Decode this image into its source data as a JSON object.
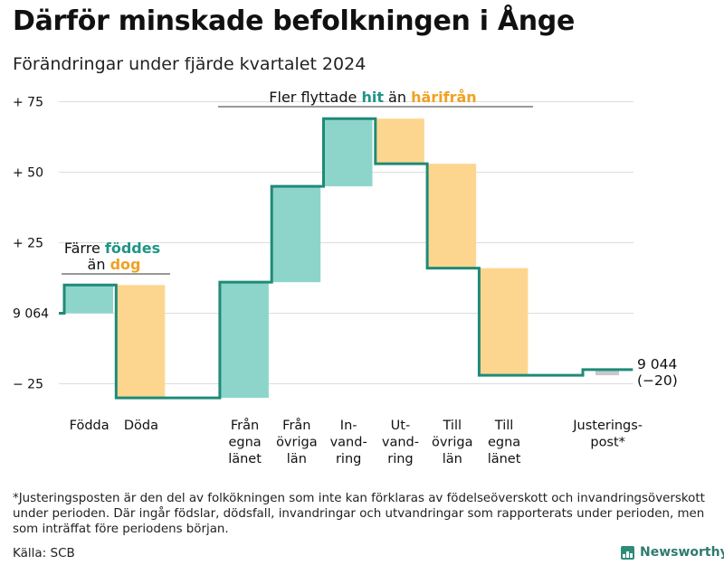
{
  "chart_data": {
    "type": "waterfall",
    "title": "Därför minskade befolkningen i Ånge",
    "subtitle": "Förändringar under fjärde kvartalet 2024",
    "start_label": "9 064",
    "start_value": 9064,
    "end_label": "9 044",
    "end_change_label": "(−20)",
    "ylim": [
      -32,
      82
    ],
    "yticks": [
      {
        "value": 75,
        "label": "+ 75"
      },
      {
        "value": 50,
        "label": "+ 50"
      },
      {
        "value": 25,
        "label": "+ 25"
      },
      {
        "value": 0,
        "label": "9 064"
      },
      {
        "value": -25,
        "label": "− 25"
      }
    ],
    "steps": [
      {
        "key": "fodda",
        "lines": [
          "Födda"
        ],
        "change": 10,
        "kind": "positive"
      },
      {
        "key": "doda",
        "lines": [
          "Döda"
        ],
        "change": -40,
        "kind": "negative"
      },
      {
        "key": "gap",
        "lines": [],
        "change": 0,
        "kind": "gap"
      },
      {
        "key": "fran_egna",
        "lines": [
          "Från",
          "egna",
          "länet"
        ],
        "change": 41,
        "kind": "positive"
      },
      {
        "key": "fran_ovriga",
        "lines": [
          "Från",
          "övriga",
          "län"
        ],
        "change": 34,
        "kind": "positive"
      },
      {
        "key": "invandring",
        "lines": [
          "In-",
          "vand-",
          "ring"
        ],
        "change": 24,
        "kind": "positive"
      },
      {
        "key": "utvandring",
        "lines": [
          "Ut-",
          "vand-",
          "ring"
        ],
        "change": -16,
        "kind": "negative"
      },
      {
        "key": "till_ovriga",
        "lines": [
          "Till",
          "övriga",
          "län"
        ],
        "change": -37,
        "kind": "negative"
      },
      {
        "key": "till_egna",
        "lines": [
          "Till",
          "egna",
          "länet"
        ],
        "change": -38,
        "kind": "negative"
      },
      {
        "key": "gap2",
        "lines": [],
        "change": 0,
        "kind": "gap"
      },
      {
        "key": "justering",
        "lines": [
          "Justerings-",
          "post*"
        ],
        "change": 2,
        "kind": "adjustment"
      }
    ],
    "annotations": {
      "births": {
        "line1_pre": "Färre ",
        "line1_hi": "föddes",
        "line2_pre": "än ",
        "line2_hi": "dog"
      },
      "migration": {
        "pre": "Fler flyttade ",
        "hi1": "hit",
        "mid": " än ",
        "hi2": "härifrån"
      }
    },
    "colors": {
      "positive": "#8dd5cb",
      "negative": "#fcd68f",
      "adjustment": "#c8c8c8",
      "line": "#1f8a78",
      "accent_teal": "#1f9585",
      "accent_orange": "#f0a122",
      "grid": "#dddddd"
    }
  },
  "footnote": "*Justeringsposten är den del av folkökningen som inte kan förklaras av födelseöverskott och invandringsöverskott under perioden. Där ingår födslar, dödsfall, invandringar och utvandringar som rapporterats under perioden, men som inträffat före periodens början.",
  "source": "Källa: SCB",
  "brand": "Newsworthy"
}
